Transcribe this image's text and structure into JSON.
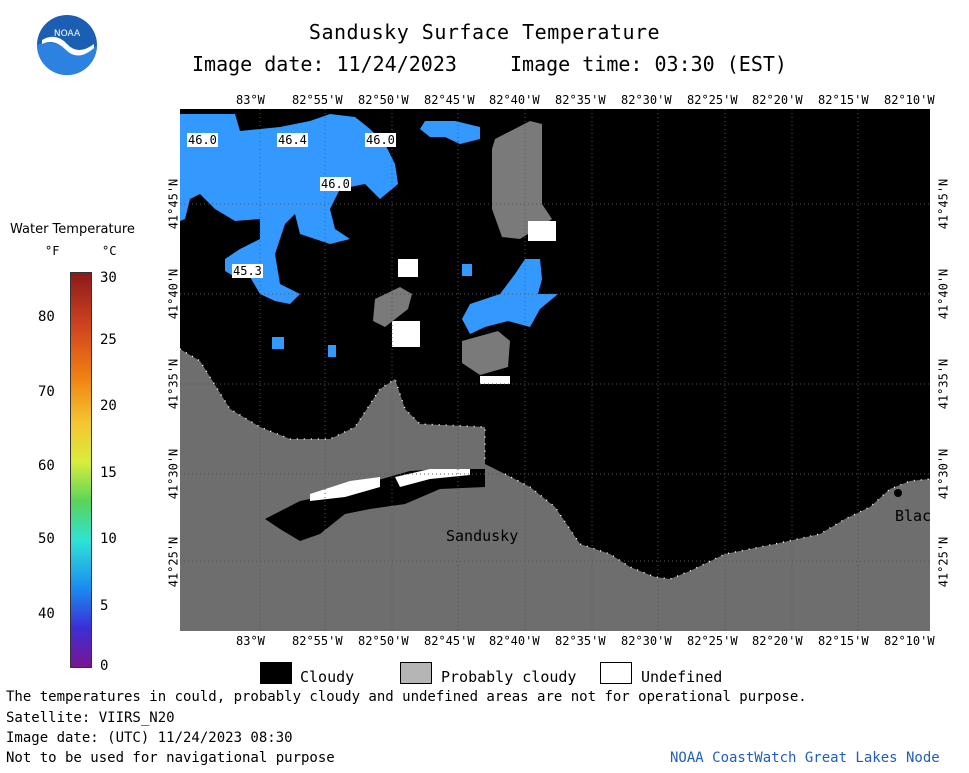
{
  "header": {
    "title": "Sandusky Surface Temperature",
    "image_date": "Image date: 11/24/2023",
    "image_time": "Image time: 03:30 (EST)",
    "logo_text": "NOAA"
  },
  "colorbar": {
    "title": "Water Temperature",
    "unit_f": "°F",
    "unit_c": "°C",
    "f_ticks": [
      "80",
      "70",
      "60",
      "50",
      "40"
    ],
    "c_ticks": [
      "30",
      "25",
      "20",
      "15",
      "10",
      "5",
      "0"
    ]
  },
  "map": {
    "lon_labels": [
      "83°W",
      "82°55'W",
      "82°50'W",
      "82°45'W",
      "82°40'W",
      "82°35'W",
      "82°30'W",
      "82°25'W",
      "82°20'W",
      "82°15'W",
      "82°10'W"
    ],
    "lat_labels": [
      "41°45'N",
      "41°40'N",
      "41°35'N",
      "41°30'N",
      "41°25'N"
    ],
    "temp_labels": [
      "46.0",
      "46.4",
      "46.0",
      "46.0",
      "45.3"
    ],
    "place_labels": [
      "Sandusky",
      "Blac"
    ],
    "colors": {
      "water": "#000000",
      "land": "#6e6e6e",
      "probably_cloudy": "#7a7a7a",
      "temp_blue": "#3399ff"
    }
  },
  "legend": {
    "cloudy": "Cloudy",
    "probably_cloudy": "Probably cloudy",
    "undefined": "Undefined"
  },
  "footer": {
    "note": "The temperatures in could, probably cloudy and undefined areas are not for operational purpose.",
    "satellite": "Satellite: VIIRS_N20",
    "utc_date": "Image date: (UTC) 11/24/2023  08:30",
    "nav": "Not to be used for navigational purpose",
    "credit": "NOAA CoastWatch Great Lakes Node"
  }
}
